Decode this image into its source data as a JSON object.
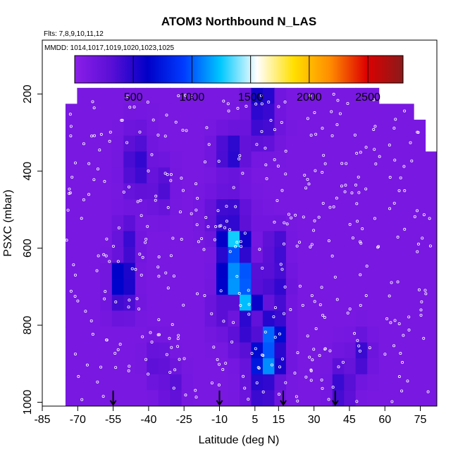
{
  "chart_data": {
    "type": "heatmap",
    "title": "ATOM3 Northbound N_LAS",
    "annotations": {
      "flights": "Flts: 7,8,9,10,11,12",
      "dates": "MMDD: 1014,1017,1019,1020,1023,1025"
    },
    "xlabel": "Latitude (deg N)",
    "ylabel": "PSXC (mbar)",
    "xlim": [
      -85,
      82
    ],
    "ylim": [
      1010,
      60
    ],
    "x_ticks": [
      -85,
      -70,
      -55,
      -40,
      -25,
      -10,
      5,
      15,
      30,
      45,
      60,
      75
    ],
    "x_tick_labels": [
      "-85",
      "-70",
      "-55",
      "-40",
      "-25",
      "-10",
      "5",
      "15",
      "30",
      "45",
      "60",
      "75"
    ],
    "y_ticks": [
      200,
      400,
      600,
      800,
      1000
    ],
    "y_tick_labels": [
      "200",
      "400",
      "600",
      "800",
      "1000"
    ],
    "colorbar": {
      "min": 0,
      "max": 2800,
      "ticks": [
        500,
        1000,
        1500,
        2000,
        2500
      ],
      "tick_labels": [
        "500",
        "1000",
        "1500",
        "2000",
        "2500"
      ],
      "colors": [
        "#8b1ee8",
        "#5a0fd6",
        "#0000c8",
        "#003cff",
        "#00c8ff",
        "#ffffff",
        "#ffe000",
        "#ff8c00",
        "#dd0000",
        "#8b1a1a"
      ]
    },
    "background_value": 120,
    "hotspots": [
      {
        "lat": 8,
        "psxc": 220,
        "value": 700,
        "lat_width": 5,
        "p_height": 45
      },
      {
        "lat": 8,
        "psxc": 290,
        "value": 450,
        "lat_width": 6,
        "p_height": 50
      },
      {
        "lat": -5,
        "psxc": 350,
        "value": 550,
        "lat_width": 6,
        "p_height": 50
      },
      {
        "lat": -45,
        "psxc": 380,
        "value": 500,
        "lat_width": 5,
        "p_height": 80
      },
      {
        "lat": -35,
        "psxc": 440,
        "value": 400,
        "lat_width": 4,
        "p_height": 60
      },
      {
        "lat": -6,
        "psxc": 520,
        "value": 500,
        "lat_width": 8,
        "p_height": 60
      },
      {
        "lat": -49,
        "psxc": 590,
        "value": 450,
        "lat_width": 4,
        "p_height": 70
      },
      {
        "lat": -3,
        "psxc": 590,
        "value": 1450,
        "lat_width": 4,
        "p_height": 45
      },
      {
        "lat": -7,
        "psxc": 590,
        "value": 900,
        "lat_width": 3,
        "p_height": 45
      },
      {
        "lat": 14,
        "psxc": 600,
        "value": 500,
        "lat_width": 4,
        "p_height": 50
      },
      {
        "lat": -51,
        "psxc": 680,
        "value": 950,
        "lat_width": 4,
        "p_height": 45
      },
      {
        "lat": -2,
        "psxc": 680,
        "value": 1500,
        "lat_width": 6,
        "p_height": 45
      },
      {
        "lat": -8,
        "psxc": 680,
        "value": 800,
        "lat_width": 3,
        "p_height": 45
      },
      {
        "lat": 14,
        "psxc": 690,
        "value": 500,
        "lat_width": 5,
        "p_height": 60
      },
      {
        "lat": -51,
        "psxc": 740,
        "value": 450,
        "lat_width": 5,
        "p_height": 40
      },
      {
        "lat": 2,
        "psxc": 740,
        "value": 1300,
        "lat_width": 4,
        "p_height": 40
      },
      {
        "lat": -10,
        "psxc": 760,
        "value": 350,
        "lat_width": 4,
        "p_height": 60
      },
      {
        "lat": 15,
        "psxc": 770,
        "value": 450,
        "lat_width": 4,
        "p_height": 60
      },
      {
        "lat": 12,
        "psxc": 830,
        "value": 1100,
        "lat_width": 5,
        "p_height": 50
      },
      {
        "lat": 0,
        "psxc": 830,
        "value": 450,
        "lat_width": 5,
        "p_height": 50
      },
      {
        "lat": 10,
        "psxc": 890,
        "value": 1250,
        "lat_width": 6,
        "p_height": 50
      },
      {
        "lat": 50,
        "psxc": 880,
        "value": 450,
        "lat_width": 4,
        "p_height": 50
      },
      {
        "lat": -36,
        "psxc": 900,
        "value": 350,
        "lat_width": 4,
        "p_height": 50
      },
      {
        "lat": 42,
        "psxc": 960,
        "value": 500,
        "lat_width": 4,
        "p_height": 70
      },
      {
        "lat": 8,
        "psxc": 960,
        "value": 550,
        "lat_width": 6,
        "p_height": 60
      },
      {
        "lat": -30,
        "psxc": 960,
        "value": 350,
        "lat_width": 4,
        "p_height": 50
      }
    ],
    "arrows_lat": [
      -55,
      -10,
      17,
      39
    ]
  }
}
